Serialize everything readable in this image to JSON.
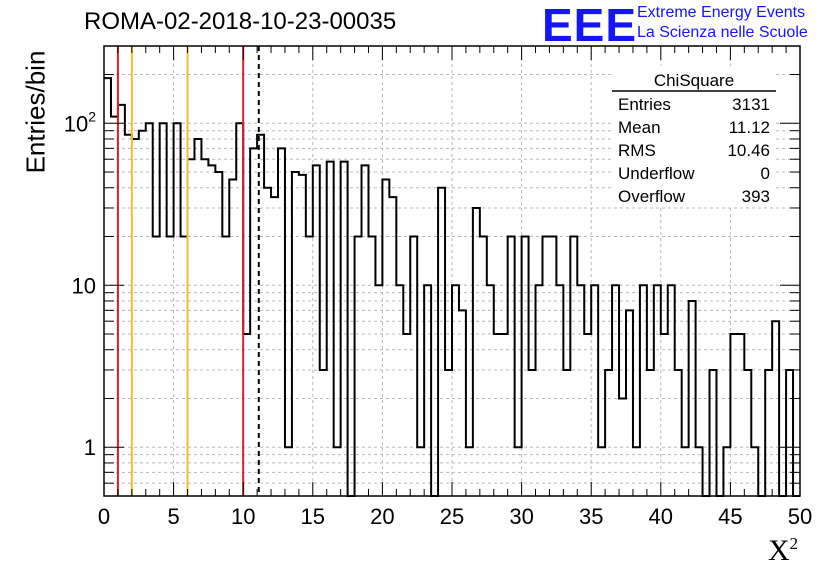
{
  "header": {
    "title": "ROMA-02-2018-10-23-00035",
    "logo_text": "EEE",
    "logo_line1": "Extreme Energy Events",
    "logo_line2": "La Scienza nelle Scuole",
    "logo_color": "#1414ff"
  },
  "stats_box": {
    "title": "ChiSquare",
    "rows": [
      {
        "label": "Entries",
        "value": "3131"
      },
      {
        "label": "Mean",
        "value": "11.12"
      },
      {
        "label": "RMS",
        "value": "10.46"
      },
      {
        "label": "Underflow",
        "value": "0"
      },
      {
        "label": "Overflow",
        "value": "393"
      }
    ]
  },
  "chart_data": {
    "type": "bar",
    "histogram": true,
    "title": "ROMA-02-2018-10-23-00035",
    "xlabel": "X",
    "xlabel_superscript": "2",
    "ylabel": "Entries/bin",
    "xlim": [
      0,
      50
    ],
    "ylim": [
      0.5,
      300
    ],
    "y_scale": "log",
    "bin_width": 0.5,
    "x_ticks": [
      "0",
      "5",
      "10",
      "15",
      "20",
      "25",
      "30",
      "35",
      "40",
      "45",
      "50"
    ],
    "y_ticks": [
      {
        "value": 1,
        "label": "1"
      },
      {
        "value": 10,
        "label": "10"
      },
      {
        "value": 100,
        "label": "10",
        "sup": "2"
      }
    ],
    "grid": true,
    "values": [
      190,
      110,
      130,
      85,
      80,
      90,
      100,
      20,
      100,
      20,
      100,
      20,
      60,
      80,
      60,
      55,
      50,
      20,
      45,
      100,
      5,
      70,
      85,
      40,
      35,
      70,
      1,
      50,
      48,
      20,
      55,
      3,
      58,
      1,
      58,
      0.4,
      20,
      55,
      20,
      10,
      45,
      35,
      10,
      5,
      20,
      1,
      10,
      0.4,
      40,
      3,
      10,
      7,
      1,
      30,
      20,
      10,
      5,
      5,
      20,
      1,
      20,
      3,
      10,
      20,
      20,
      10,
      3,
      20,
      10,
      5,
      10,
      1,
      3,
      10,
      2,
      7,
      1,
      10,
      3,
      10,
      5,
      10,
      3,
      1,
      8,
      1,
      0.4,
      3,
      0.4,
      1,
      5,
      5,
      3,
      1,
      0.4,
      3,
      6,
      0.4,
      3,
      0.4
    ],
    "reference_lines": [
      {
        "x": 1,
        "color": "#e02020",
        "style": "solid"
      },
      {
        "x": 2,
        "color": "#f0c020",
        "style": "solid"
      },
      {
        "x": 6,
        "color": "#f0c020",
        "style": "solid"
      },
      {
        "x": 10,
        "color": "#e02020",
        "style": "solid"
      },
      {
        "x": 11.12,
        "color": "#000000",
        "style": "dashed"
      }
    ]
  }
}
